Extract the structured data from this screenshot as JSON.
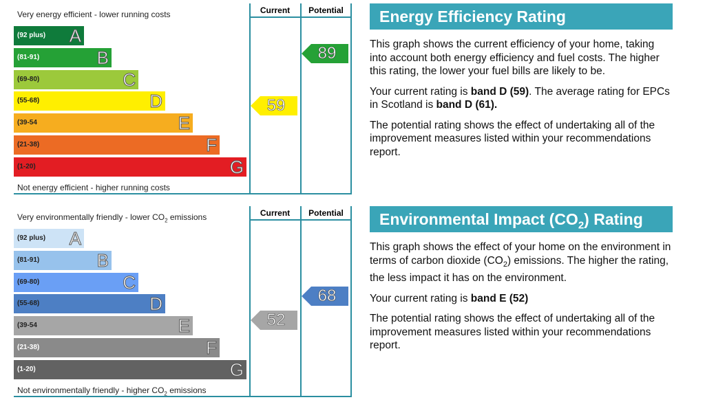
{
  "energy": {
    "top_label": "Very energy efficient - lower running costs",
    "bottom_label": "Not energy efficient - higher running costs",
    "col_current": "Current",
    "col_potential": "Potential",
    "bands": [
      {
        "range": "(92 plus)",
        "letter": "A",
        "color": "#0f7b3b",
        "text": "#fff"
      },
      {
        "range": "(81-91)",
        "letter": "B",
        "color": "#25a136",
        "text": "#fff"
      },
      {
        "range": "(69-80)",
        "letter": "C",
        "color": "#9cc93b",
        "text": "#222"
      },
      {
        "range": "(55-68)",
        "letter": "D",
        "color": "#ffef00",
        "text": "#222"
      },
      {
        "range": "(39-54",
        "letter": "E",
        "color": "#f6ad1f",
        "text": "#222"
      },
      {
        "range": "(21-38)",
        "letter": "F",
        "color": "#ec6b24",
        "text": "#222"
      },
      {
        "range": "(1-20)",
        "letter": "G",
        "color": "#e31d23",
        "text": "#222"
      }
    ],
    "current": {
      "value": "59",
      "band": "D",
      "color": "#ffef00"
    },
    "potential": {
      "value": "89",
      "band": "B",
      "color": "#25a136"
    }
  },
  "env": {
    "top_label_a": "Very environmentally friendly - lower CO",
    "top_label_b": " emissions",
    "bottom_label_a": "Not environmentally friendly - higher CO",
    "bottom_label_b": " emissions",
    "sub": "2",
    "col_current": "Current",
    "col_potential": "Potential",
    "bands": [
      {
        "range": "(92 plus)",
        "letter": "A",
        "color": "#cde3f6",
        "text": "#222"
      },
      {
        "range": "(81-91)",
        "letter": "B",
        "color": "#97c2ec",
        "text": "#222"
      },
      {
        "range": "(69-80)",
        "letter": "C",
        "color": "#6a9ff5",
        "text": "#222"
      },
      {
        "range": "(55-68)",
        "letter": "D",
        "color": "#4d7fc4",
        "text": "#222"
      },
      {
        "range": "(39-54",
        "letter": "E",
        "color": "#a6a6a6",
        "text": "#222"
      },
      {
        "range": "(21-38)",
        "letter": "F",
        "color": "#8a8a8a",
        "text": "#fff"
      },
      {
        "range": "(1-20)",
        "letter": "G",
        "color": "#626262",
        "text": "#fff"
      }
    ],
    "current": {
      "value": "52",
      "band": "E",
      "color": "#a6a6a6"
    },
    "potential": {
      "value": "68",
      "band": "C/D",
      "color": "#4d7fc4"
    }
  },
  "panel1": {
    "title": "Energy Efficiency Rating",
    "p1": "This graph shows the current efficiency of your home, taking into account both energy efficiency and fuel costs. The higher this rating, the lower your fuel bills are likely to be.",
    "p2a": "Your current rating is ",
    "p2b": "band D (59)",
    "p2c": ". The average rating for EPCs in Scotland is ",
    "p2d": "band D (61).",
    "p3": "The potential rating shows the effect of undertaking all of the improvement measures listed within your recommendations report."
  },
  "panel2": {
    "title_a": "Environmental Impact (CO",
    "title_sub": "2",
    "title_b": ") Rating",
    "p1a": "This graph shows the effect of your home on the environment in terms of carbon dioxide (CO",
    "p1sub": "2",
    "p1b": ") emissions. The higher the rating, the less impact it has on the environment.",
    "p2a": "Your current rating is ",
    "p2b": "band E (52)",
    "p3": "The potential rating shows the effect of undertaking all of the improvement measures listed within your recommendations report."
  }
}
